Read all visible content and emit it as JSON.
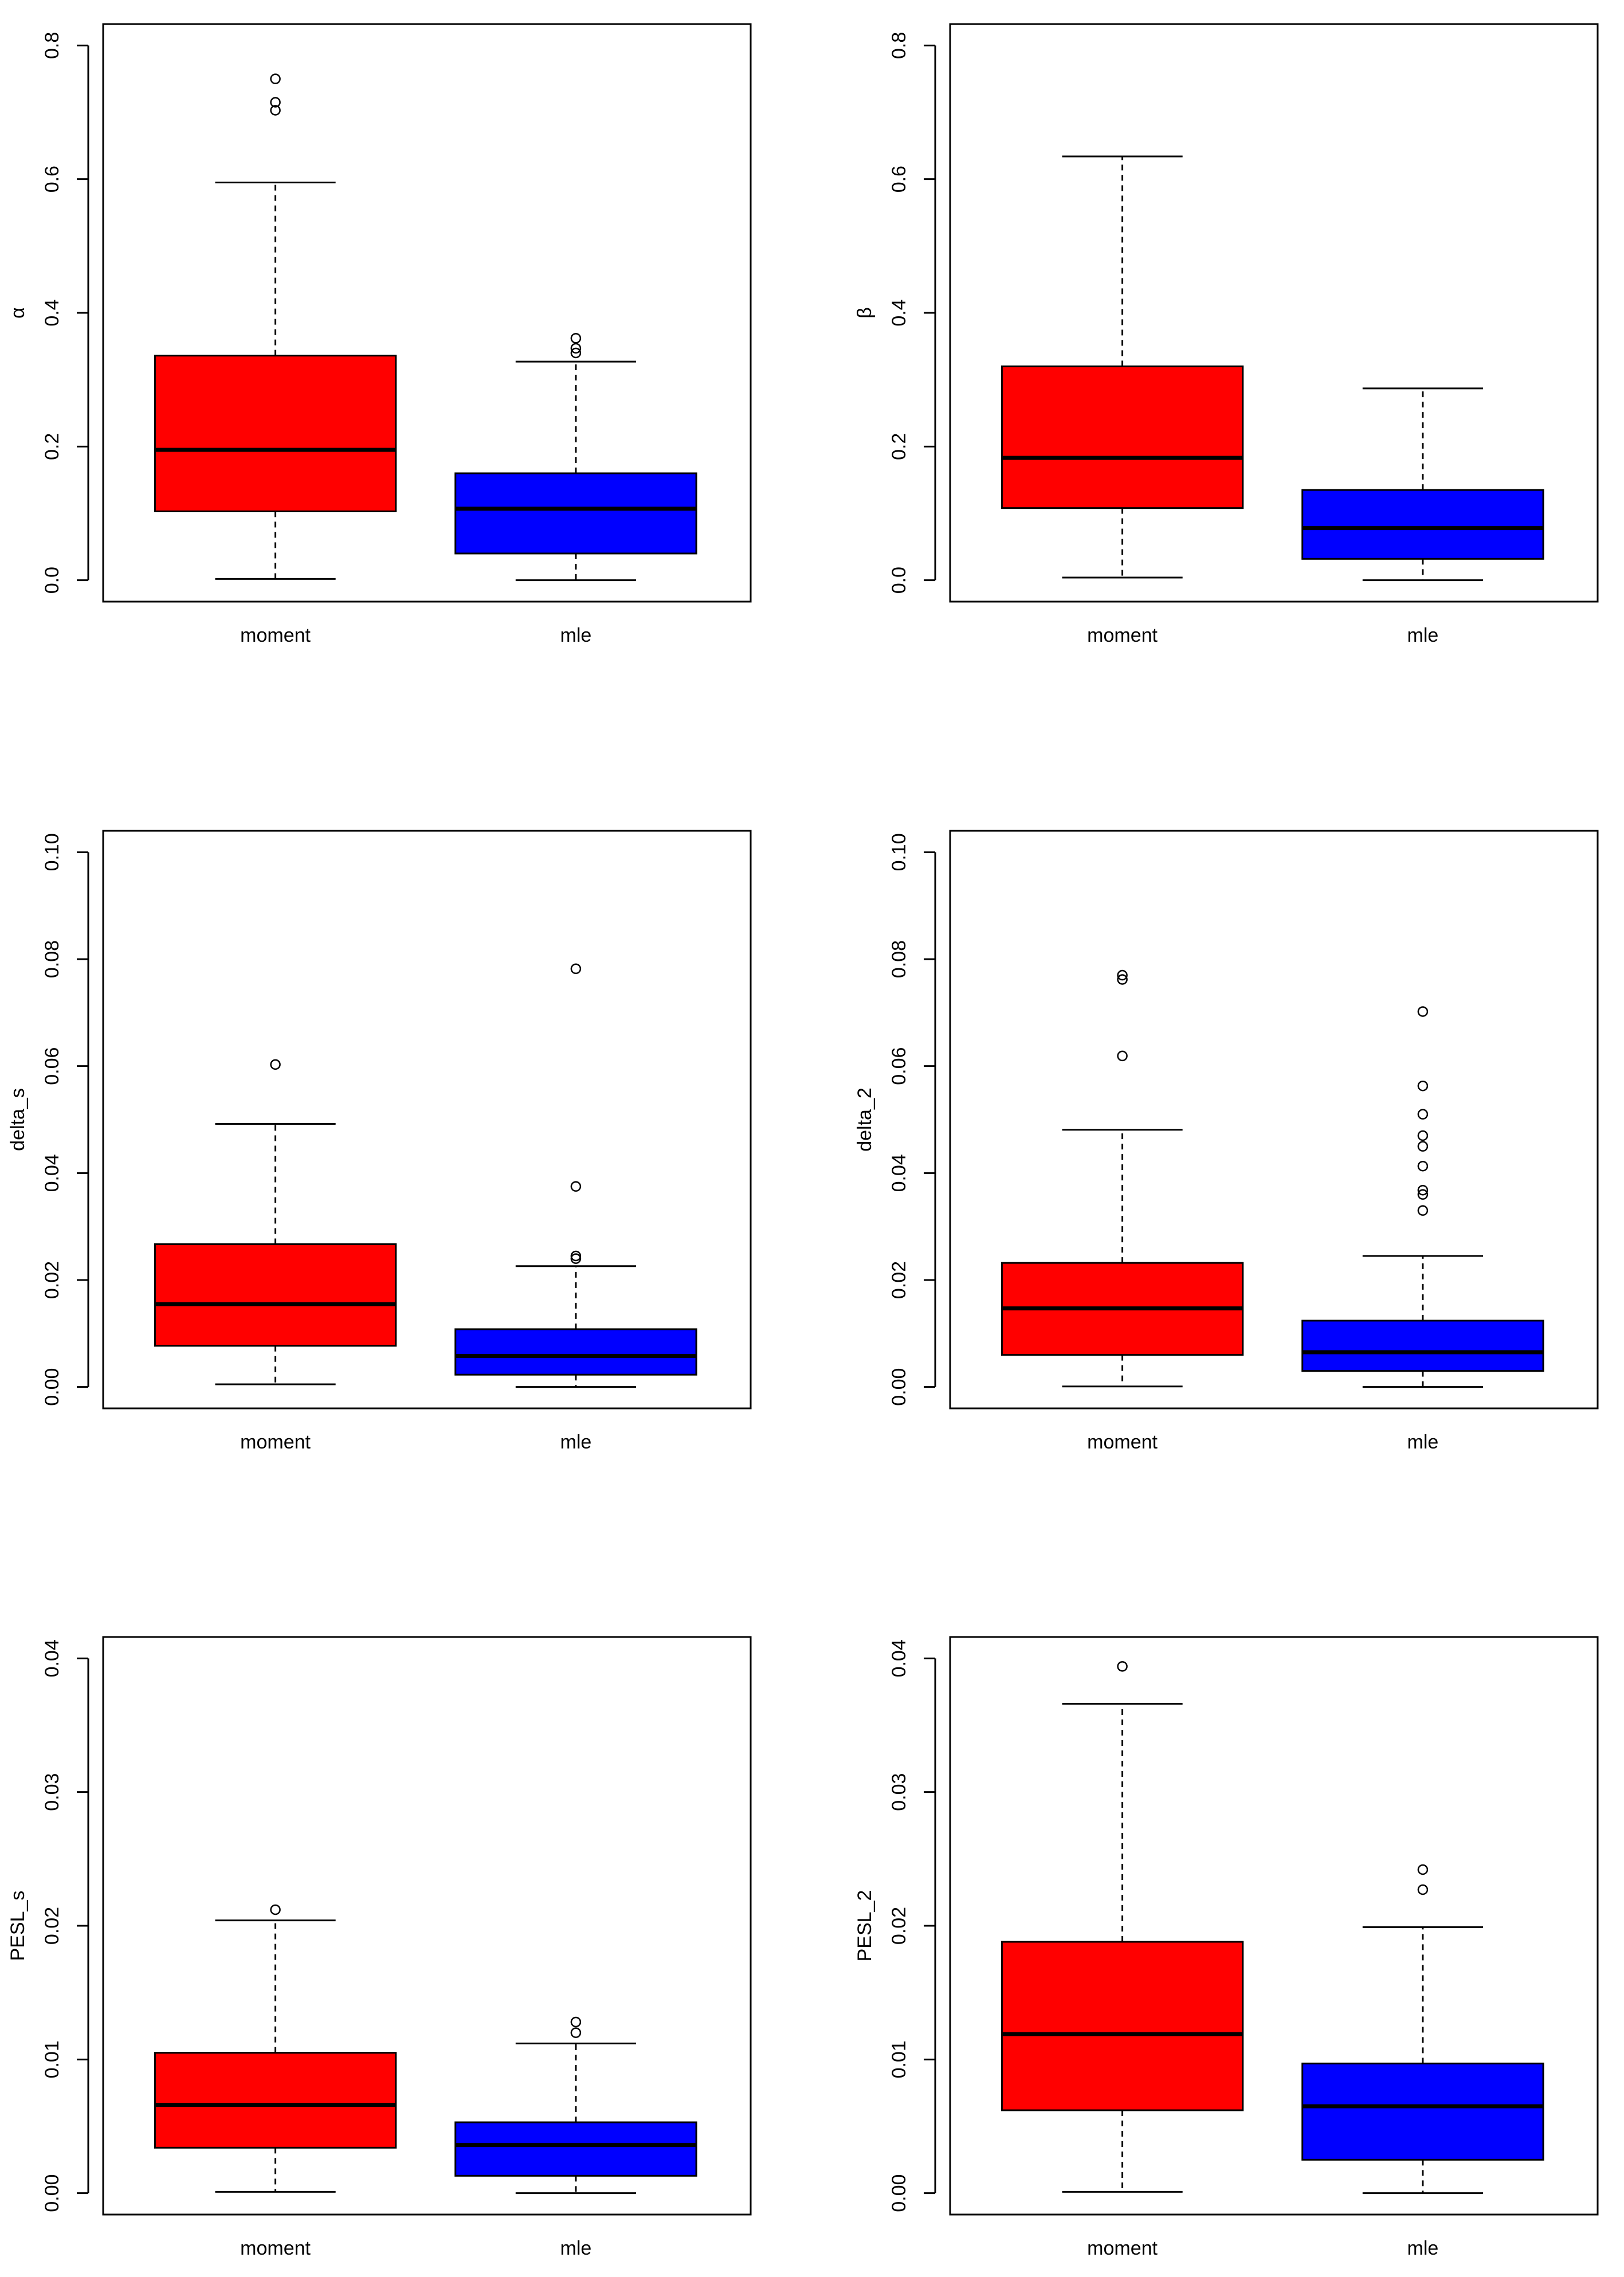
{
  "chart_data": [
    {
      "type": "box",
      "ylabel": "α",
      "ylim": [
        0,
        0.8
      ],
      "yticks": [
        0.0,
        0.2,
        0.4,
        0.6,
        0.8
      ],
      "tick_labels": [
        "0.0",
        "0.2",
        "0.4",
        "0.6",
        "0.8"
      ],
      "categories": [
        "moment",
        "mle"
      ],
      "boxes": [
        {
          "name": "moment",
          "color": "#ff0000",
          "whisker_low": 0.002,
          "q1": 0.103,
          "median": 0.195,
          "q3": 0.336,
          "whisker_high": 0.595,
          "outliers": [
            0.75,
            0.715,
            0.703
          ]
        },
        {
          "name": "mle",
          "color": "#0000ff",
          "whisker_low": 0.0,
          "q1": 0.04,
          "median": 0.107,
          "q3": 0.16,
          "whisker_high": 0.327,
          "outliers": [
            0.362,
            0.347,
            0.34
          ]
        }
      ]
    },
    {
      "type": "box",
      "ylabel": "β",
      "ylim": [
        0,
        0.8
      ],
      "yticks": [
        0.0,
        0.2,
        0.4,
        0.6,
        0.8
      ],
      "tick_labels": [
        "0.0",
        "0.2",
        "0.4",
        "0.6",
        "0.8"
      ],
      "categories": [
        "moment",
        "mle"
      ],
      "boxes": [
        {
          "name": "moment",
          "color": "#ff0000",
          "whisker_low": 0.004,
          "q1": 0.108,
          "median": 0.183,
          "q3": 0.32,
          "whisker_high": 0.634,
          "outliers": []
        },
        {
          "name": "mle",
          "color": "#0000ff",
          "whisker_low": 0.0,
          "q1": 0.032,
          "median": 0.078,
          "q3": 0.135,
          "whisker_high": 0.287,
          "outliers": []
        }
      ]
    },
    {
      "type": "box",
      "ylabel": "delta_s",
      "ylim": [
        0,
        0.1
      ],
      "yticks": [
        0.0,
        0.02,
        0.04,
        0.06,
        0.08,
        0.1
      ],
      "tick_labels": [
        "0.00",
        "0.02",
        "0.04",
        "0.06",
        "0.08",
        "0.10"
      ],
      "categories": [
        "moment",
        "mle"
      ],
      "boxes": [
        {
          "name": "moment",
          "color": "#ff0000",
          "whisker_low": 0.0005,
          "q1": 0.0077,
          "median": 0.0155,
          "q3": 0.0267,
          "whisker_high": 0.0492,
          "outliers": [
            0.0603
          ]
        },
        {
          "name": "mle",
          "color": "#0000ff",
          "whisker_low": 0.0,
          "q1": 0.0023,
          "median": 0.0058,
          "q3": 0.0108,
          "whisker_high": 0.0226,
          "outliers": [
            0.0782,
            0.0375,
            0.0245,
            0.024
          ]
        }
      ]
    },
    {
      "type": "box",
      "ylabel": "delta_2",
      "ylim": [
        0,
        0.1
      ],
      "yticks": [
        0.0,
        0.02,
        0.04,
        0.06,
        0.08,
        0.1
      ],
      "tick_labels": [
        "0.00",
        "0.02",
        "0.04",
        "0.06",
        "0.08",
        "0.10"
      ],
      "categories": [
        "moment",
        "mle"
      ],
      "boxes": [
        {
          "name": "moment",
          "color": "#ff0000",
          "whisker_low": 0.0001,
          "q1": 0.006,
          "median": 0.0147,
          "q3": 0.0232,
          "whisker_high": 0.0481,
          "outliers": [
            0.077,
            0.0762,
            0.0619
          ]
        },
        {
          "name": "mle",
          "color": "#0000ff",
          "whisker_low": 0.0,
          "q1": 0.003,
          "median": 0.0065,
          "q3": 0.0124,
          "whisker_high": 0.0245,
          "outliers": [
            0.0702,
            0.0563,
            0.051,
            0.047,
            0.045,
            0.0413,
            0.0368,
            0.036,
            0.033
          ]
        }
      ]
    },
    {
      "type": "box",
      "ylabel": "PESL_s",
      "ylim": [
        0,
        0.04
      ],
      "yticks": [
        0.0,
        0.01,
        0.02,
        0.03,
        0.04
      ],
      "tick_labels": [
        "0.00",
        "0.01",
        "0.02",
        "0.03",
        "0.04"
      ],
      "categories": [
        "moment",
        "mle"
      ],
      "boxes": [
        {
          "name": "moment",
          "color": "#ff0000",
          "whisker_low": 0.0001,
          "q1": 0.0034,
          "median": 0.0066,
          "q3": 0.0105,
          "whisker_high": 0.0204,
          "outliers": [
            0.0212
          ]
        },
        {
          "name": "mle",
          "color": "#0000ff",
          "whisker_low": 0.0,
          "q1": 0.0013,
          "median": 0.0036,
          "q3": 0.0053,
          "whisker_high": 0.0112,
          "outliers": [
            0.0128,
            0.012
          ]
        }
      ]
    },
    {
      "type": "box",
      "ylabel": "PESL_2",
      "ylim": [
        0,
        0.04
      ],
      "yticks": [
        0.0,
        0.01,
        0.02,
        0.03,
        0.04
      ],
      "tick_labels": [
        "0.00",
        "0.01",
        "0.02",
        "0.03",
        "0.04"
      ],
      "categories": [
        "moment",
        "mle"
      ],
      "boxes": [
        {
          "name": "moment",
          "color": "#ff0000",
          "whisker_low": 0.0001,
          "q1": 0.0062,
          "median": 0.0119,
          "q3": 0.0188,
          "whisker_high": 0.0366,
          "outliers": [
            0.0394
          ]
        },
        {
          "name": "mle",
          "color": "#0000ff",
          "whisker_low": 0.0,
          "q1": 0.0025,
          "median": 0.0065,
          "q3": 0.0097,
          "whisker_high": 0.0199,
          "outliers": [
            0.0242,
            0.0227
          ]
        }
      ]
    }
  ]
}
